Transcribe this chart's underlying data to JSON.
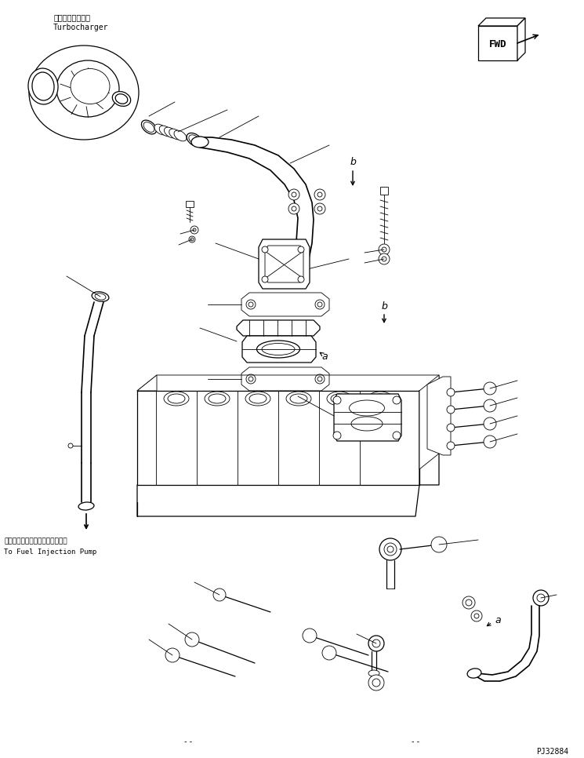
{
  "bg_color": "#ffffff",
  "line_color": "#000000",
  "fig_width": 7.45,
  "fig_height": 9.66,
  "dpi": 100,
  "turbocharger_label_jp": "ターボチャージャ",
  "turbocharger_label_en": "Turbocharger",
  "fuel_pump_label_jp": "フェルインジェクションポンプへ",
  "fuel_pump_label_en": "To Fuel Injection Pump",
  "fwd_label": "FWD",
  "part_id": "PJ32884",
  "label_a": "a",
  "label_b": "b"
}
